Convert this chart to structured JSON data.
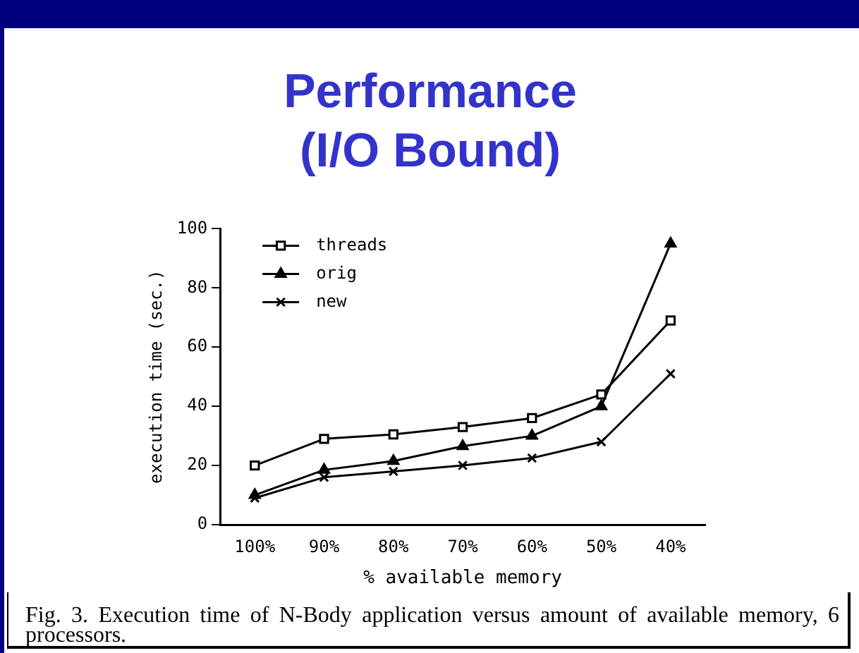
{
  "chart_data": {
    "type": "line",
    "title": "Performance (I/O Bound)",
    "xlabel": "% available memory",
    "ylabel": "execution time (sec.)",
    "categories": [
      "100%",
      "90%",
      "80%",
      "70%",
      "60%",
      "50%",
      "40%"
    ],
    "series": [
      {
        "name": "threads",
        "color": "#000000",
        "marker": "square",
        "values": [
          20,
          29,
          30.5,
          33,
          36,
          44,
          69
        ]
      },
      {
        "name": "orig",
        "color": "#000000",
        "marker": "triangle",
        "values": [
          10,
          18.5,
          21.5,
          26.5,
          30,
          40,
          95
        ]
      },
      {
        "name": "new",
        "color": "#000000",
        "marker": "cross",
        "values": [
          9,
          16,
          18,
          20,
          22.5,
          28,
          51
        ]
      }
    ],
    "ylim": [
      0,
      100
    ],
    "yticks": [
      0,
      20,
      40,
      60,
      80,
      100
    ],
    "grid": false,
    "legend": "top left",
    "line_style": "solid",
    "annotations": [
      "Fig. 3.  Execution time of N-Body application versus amount of available memory, 6 processors."
    ]
  }
}
